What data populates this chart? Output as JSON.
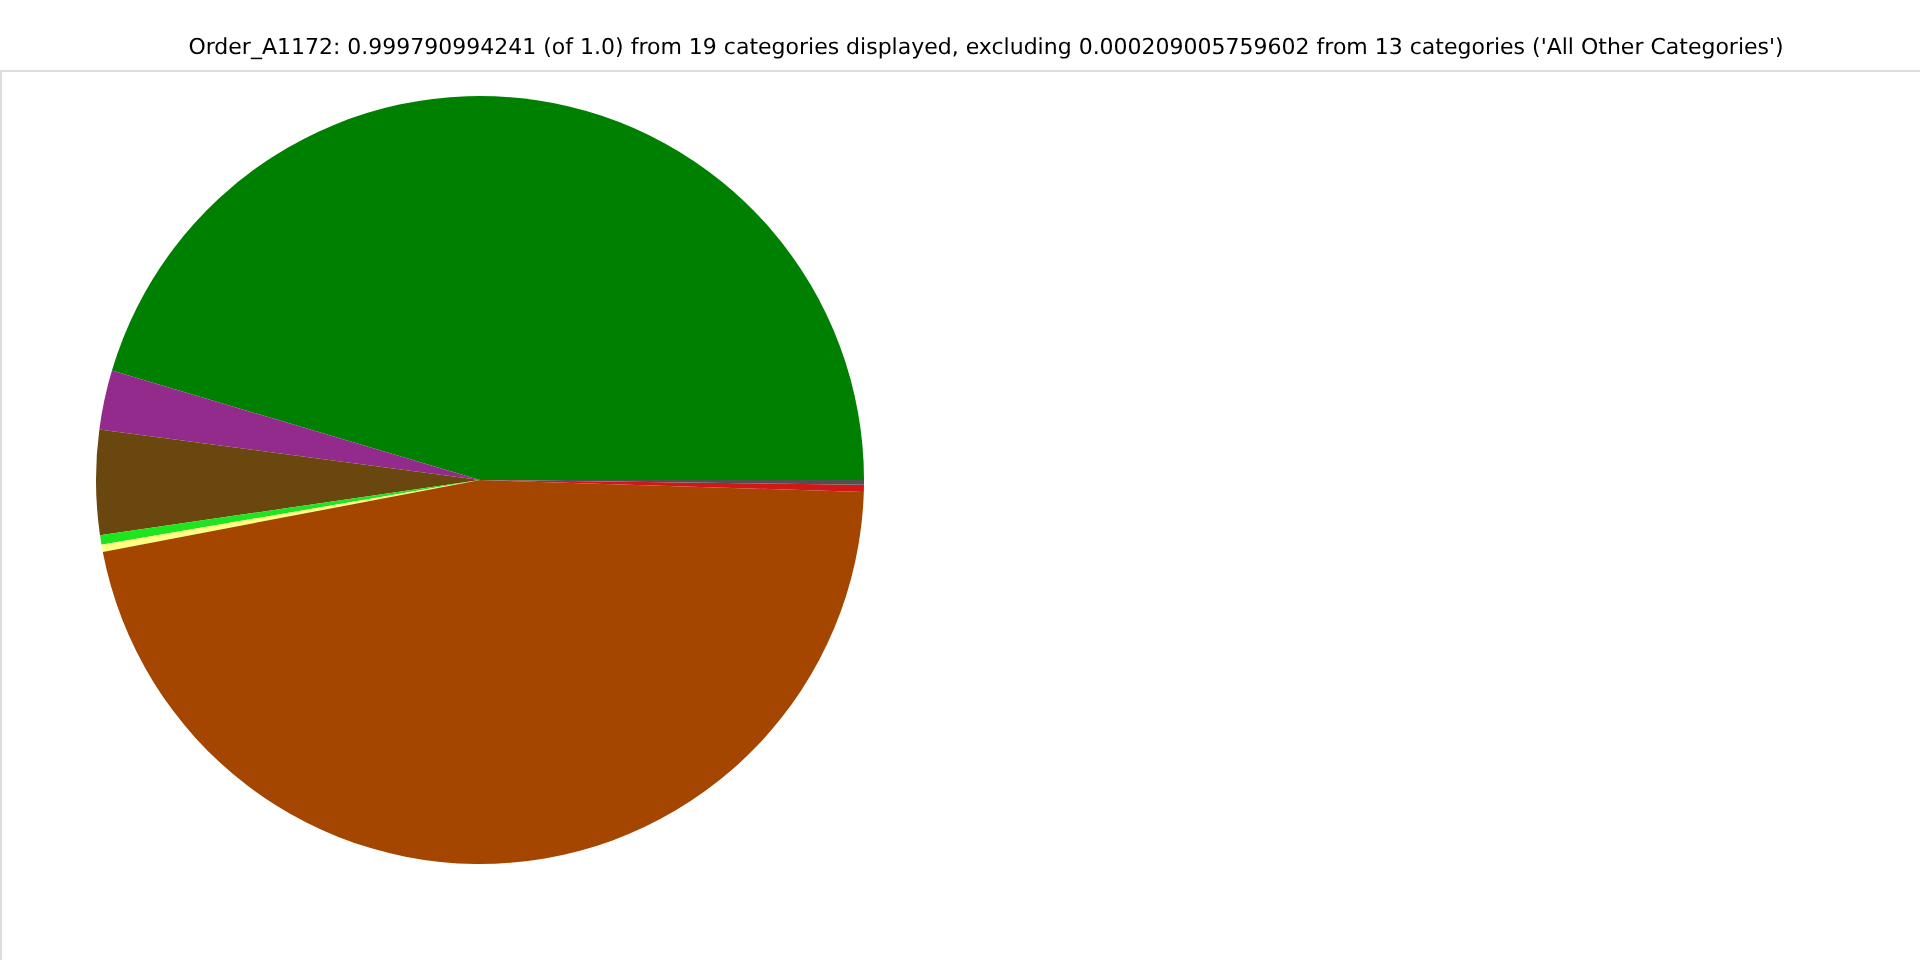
{
  "chart_data": {
    "type": "pie",
    "title": "Order_A1172: 0.999790994241 (of 1.0) from 19 categories displayed, excluding 0.000209005759602 from 13 categories ('All Other Categories')",
    "categories": [
      null,
      null,
      null,
      null,
      null,
      null,
      null,
      null
    ],
    "values": [
      45.4,
      2.5,
      4.4,
      0.4,
      0.3,
      46.5,
      0.3,
      0.2
    ],
    "colors": [
      "#008000",
      "#922b8c",
      "#6b4710",
      "#1ee61e",
      "#ffff80",
      "#a54600",
      "#d01818",
      "#505050"
    ]
  }
}
